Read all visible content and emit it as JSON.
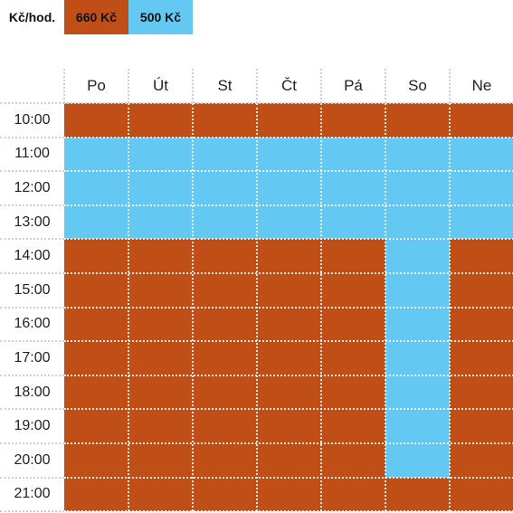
{
  "legend": {
    "unit_label": "Kč/hod.",
    "rates": [
      {
        "label": "660 Kč",
        "color": "#bf4e17"
      },
      {
        "label": "500 Kč",
        "color": "#63c9f3"
      }
    ]
  },
  "days": [
    "Po",
    "Út",
    "St",
    "Čt",
    "Pá",
    "So",
    "Ne"
  ],
  "times": [
    "10:00",
    "11:00",
    "12:00",
    "13:00",
    "14:00",
    "15:00",
    "16:00",
    "17:00",
    "18:00",
    "19:00",
    "20:00",
    "21:00"
  ],
  "rate_grid": [
    [
      0,
      0,
      0,
      0,
      0,
      0,
      0
    ],
    [
      1,
      1,
      1,
      1,
      1,
      1,
      1
    ],
    [
      1,
      1,
      1,
      1,
      1,
      1,
      1
    ],
    [
      1,
      1,
      1,
      1,
      1,
      1,
      1
    ],
    [
      0,
      0,
      0,
      0,
      0,
      1,
      0
    ],
    [
      0,
      0,
      0,
      0,
      0,
      1,
      0
    ],
    [
      0,
      0,
      0,
      0,
      0,
      1,
      0
    ],
    [
      0,
      0,
      0,
      0,
      0,
      1,
      0
    ],
    [
      0,
      0,
      0,
      0,
      0,
      1,
      0
    ],
    [
      0,
      0,
      0,
      0,
      0,
      1,
      0
    ],
    [
      0,
      0,
      0,
      0,
      0,
      1,
      0
    ],
    [
      0,
      0,
      0,
      0,
      0,
      0,
      0
    ]
  ]
}
